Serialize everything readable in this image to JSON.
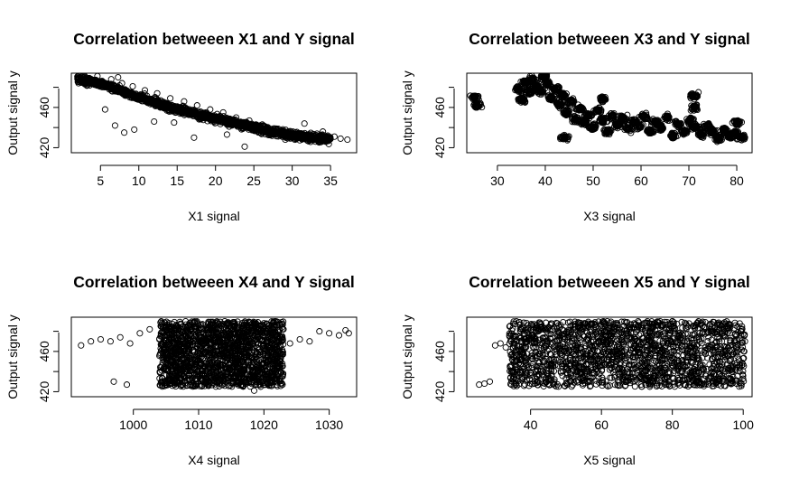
{
  "chart_data": [
    {
      "type": "scatter",
      "title": "Correlation betweeen X1 and Y signal",
      "xlabel": "X1 signal",
      "ylabel": "Output signal y",
      "xlim": [
        1.2,
        38.4
      ],
      "ylim": [
        415,
        494
      ],
      "xticks": [
        5,
        10,
        15,
        20,
        25,
        30,
        35
      ],
      "yticks": [
        420,
        460
      ],
      "color": "#000000",
      "trend": {
        "x": [
          2,
          5,
          10,
          15,
          20,
          25,
          30,
          35
        ],
        "y": [
          488,
          484,
          470,
          458,
          449,
          440,
          432,
          428
        ]
      },
      "x": [
        2.1,
        2.8,
        3.4,
        4.0,
        4.6,
        5.2,
        5.8,
        6.4,
        7.1,
        7.8,
        8.5,
        9.2,
        10.0,
        10.8,
        11.6,
        12.4,
        13.3,
        14.1,
        15.0,
        15.9,
        16.8,
        17.6,
        18.5,
        19.3,
        20.2,
        21.0,
        21.9,
        22.7,
        23.6,
        24.4,
        25.3,
        26.1,
        27.0,
        27.8,
        28.7,
        29.5,
        30.4,
        31.2,
        32.1,
        33.0,
        33.8,
        34.7,
        35.5,
        36.3,
        37.2,
        3.6,
        6.9,
        8.1,
        9.4,
        12.0,
        14.6,
        17.2,
        21.5,
        23.8,
        26.4,
        29.1,
        31.6,
        34.0,
        5.6,
        7.3
      ],
      "y": [
        488,
        486,
        489,
        484,
        491,
        486,
        483,
        488,
        479,
        484,
        476,
        481,
        472,
        477,
        468,
        474,
        464,
        469,
        461,
        466,
        457,
        462,
        452,
        458,
        449,
        455,
        446,
        450,
        441,
        447,
        437,
        443,
        433,
        439,
        431,
        436,
        429,
        434,
        430,
        428,
        432,
        427,
        431,
        429,
        428,
        482,
        442,
        435,
        438,
        446,
        445,
        430,
        433,
        421,
        440,
        428,
        444,
        436,
        458,
        490
      ]
    },
    {
      "type": "scatter",
      "title": "Correlation betweeen X3 and Y signal",
      "xlabel": "X3 signal",
      "ylabel": "Output signal y",
      "xlim": [
        23.6,
        83.2
      ],
      "ylim": [
        415,
        494
      ],
      "xticks": [
        30,
        40,
        50,
        60,
        70,
        80
      ],
      "yticks": [
        420,
        460
      ],
      "color": "#000000",
      "x": [
        25.2,
        25.8,
        34.4,
        35.1,
        35.9,
        36.6,
        37.4,
        38.2,
        39.0,
        39.8,
        40.5,
        41.3,
        42.1,
        42.9,
        43.7,
        44.5,
        45.4,
        46.3,
        47.2,
        48.1,
        49.0,
        50.0,
        51.0,
        52.0,
        53.0,
        54.0,
        55.1,
        56.2,
        57.3,
        58.4,
        59.5,
        60.6,
        61.8,
        63.0,
        64.2,
        65.4,
        66.6,
        67.8,
        69.0,
        70.2,
        71.4,
        72.6,
        73.8,
        75.0,
        76.2,
        77.4,
        78.6,
        79.8,
        81.0,
        71.0,
        71.2,
        80.1,
        52.0,
        44.0
      ],
      "y": [
        470,
        462,
        478,
        468,
        484,
        475,
        488,
        480,
        476,
        491,
        484,
        470,
        478,
        463,
        472,
        455,
        466,
        448,
        459,
        445,
        452,
        441,
        457,
        447,
        436,
        451,
        443,
        449,
        439,
        446,
        441,
        451,
        436,
        446,
        440,
        450,
        432,
        444,
        436,
        447,
        440,
        433,
        441,
        436,
        429,
        437,
        432,
        434,
        431,
        472,
        460,
        445,
        468,
        430
      ]
    },
    {
      "type": "scatter",
      "title": "Correlation betweeen X4 and Y signal",
      "xlabel": "X4 signal",
      "ylabel": "Output signal y",
      "xlim": [
        990.5,
        1034.2
      ],
      "ylim": [
        415,
        494
      ],
      "xticks": [
        1000,
        1010,
        1020,
        1030
      ],
      "yticks": [
        420,
        460
      ],
      "color": "#000000",
      "x": [
        992.0,
        993.5,
        995.0,
        996.5,
        998.0,
        999.5,
        1001.0,
        1002.5,
        1004.0,
        1005.0,
        1006.0,
        1007.0,
        1008.0,
        1009.0,
        1010.0,
        1011.0,
        1012.0,
        1013.0,
        1014.0,
        1015.0,
        1016.0,
        1017.0,
        1018.0,
        1019.0,
        1020.0,
        1021.0,
        1022.0,
        1023.0,
        1024.0,
        1025.5,
        1027.0,
        1028.5,
        1030.0,
        1031.5,
        1032.5,
        1033.0,
        997.0,
        999.0,
        1006.5,
        1011.5,
        1016.5,
        1019.5,
        1021.5,
        1018.5
      ],
      "y": [
        466,
        470,
        472,
        470,
        474,
        468,
        478,
        482,
        472,
        448,
        460,
        438,
        476,
        452,
        486,
        445,
        468,
        432,
        490,
        456,
        448,
        478,
        470,
        440,
        488,
        476,
        464,
        482,
        468,
        472,
        470,
        480,
        478,
        476,
        481,
        478,
        430,
        427,
        428,
        426,
        427,
        425,
        436,
        421
      ],
      "dense_region": {
        "x": [
          1004,
          1023
        ],
        "y": [
          425,
          490
        ]
      }
    },
    {
      "type": "scatter",
      "title": "Correlation betweeen X5 and Y signal",
      "xlabel": "X5 signal",
      "ylabel": "Output signal y",
      "xlim": [
        22.0,
        102.5
      ],
      "ylim": [
        415,
        494
      ],
      "xticks": [
        40,
        60,
        80,
        100
      ],
      "yticks": [
        420,
        460
      ],
      "color": "#000000",
      "x": [
        25.5,
        27.0,
        28.5,
        30.0,
        31.5,
        33.0,
        34.5,
        36.0,
        37.5,
        39.0,
        40.5,
        42.0,
        44.0,
        46.0,
        48.0,
        50.0,
        52.0,
        54.0,
        56.0,
        58.0,
        60.0,
        62.0,
        64.0,
        66.0,
        68.0,
        70.0,
        72.0,
        74.0,
        76.0,
        78.0,
        80.0,
        82.0,
        84.0,
        86.0,
        88.0,
        90.0,
        92.0,
        94.0,
        96.0,
        98.0,
        99.5,
        100.5,
        43.0,
        48.5,
        55.0,
        62.5
      ],
      "y": [
        427,
        428,
        430,
        466,
        468,
        464,
        470,
        434,
        462,
        438,
        474,
        442,
        470,
        446,
        478,
        450,
        482,
        456,
        486,
        452,
        480,
        460,
        488,
        456,
        484,
        462,
        488,
        458,
        486,
        464,
        490,
        460,
        486,
        466,
        488,
        462,
        484,
        470,
        486,
        466,
        480,
        470,
        484,
        486,
        486,
        488
      ],
      "dense_region": {
        "x": [
          34,
          100.5
        ],
        "y": [
          425,
          490
        ]
      }
    }
  ]
}
